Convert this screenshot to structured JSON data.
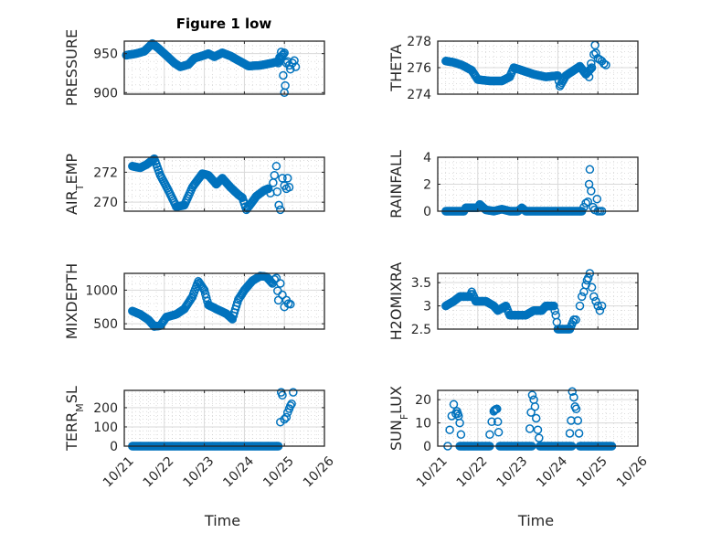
{
  "figure": {
    "title": "Figure 1 low",
    "marker_color": "#0072bd",
    "grid_color": "#d9d9d9",
    "axes_color": "#262626"
  },
  "chart_data": [
    {
      "type": "scatter",
      "id": "pressure",
      "title": "Figure 1 low",
      "ylabel": "PRESSURE",
      "ylabel_sub": null,
      "xlabel": "",
      "ylim": [
        898,
        966
      ],
      "yticks": [
        900,
        950
      ],
      "ytick_labels": [
        "900",
        "950"
      ],
      "xlim": [
        0,
        5
      ],
      "xticks": [
        0,
        1,
        2,
        3,
        4,
        5
      ],
      "xtick_labels": [
        "10/21",
        "10/22",
        "10/23",
        "10/24",
        "10/25",
        "10/26"
      ],
      "show_xtick_labels": false,
      "x_unit": "days since 10/21",
      "grid": true,
      "minor_grid": true,
      "series_keyframes": [
        [
          0.05,
          948
        ],
        [
          0.3,
          950
        ],
        [
          0.5,
          953
        ],
        [
          0.7,
          963
        ],
        [
          0.85,
          957
        ],
        [
          1.0,
          950
        ],
        [
          1.25,
          938
        ],
        [
          1.4,
          933
        ],
        [
          1.6,
          936
        ],
        [
          1.75,
          944
        ],
        [
          2.0,
          948
        ],
        [
          2.1,
          950
        ],
        [
          2.25,
          946
        ],
        [
          2.45,
          951
        ],
        [
          2.65,
          947
        ],
        [
          3.0,
          937
        ],
        [
          3.1,
          934
        ],
        [
          3.4,
          935
        ],
        [
          3.7,
          938
        ],
        [
          3.85,
          940
        ],
        [
          3.95,
          948
        ],
        [
          4.0,
          951
        ]
      ],
      "extra_points": [
        [
          3.85,
          938
        ],
        [
          3.88,
          945
        ],
        [
          3.92,
          952
        ],
        [
          3.97,
          922
        ],
        [
          4.0,
          900
        ],
        [
          4.02,
          909
        ],
        [
          4.05,
          938
        ],
        [
          4.08,
          940
        ],
        [
          4.12,
          935
        ],
        [
          4.15,
          930
        ],
        [
          4.2,
          938
        ],
        [
          4.25,
          941
        ],
        [
          4.28,
          933
        ]
      ]
    },
    {
      "type": "scatter",
      "id": "theta",
      "ylabel": "THETA",
      "ylabel_sub": null,
      "xlabel": "",
      "ylim": [
        274,
        278
      ],
      "yticks": [
        274,
        276,
        278
      ],
      "ytick_labels": [
        "274",
        "276",
        "278"
      ],
      "xlim": [
        0,
        5
      ],
      "xticks": [
        0,
        1,
        2,
        3,
        4,
        5
      ],
      "xtick_labels": [
        "10/21",
        "10/22",
        "10/23",
        "10/24",
        "10/25",
        "10/26"
      ],
      "show_xtick_labels": false,
      "grid": true,
      "minor_grid": true,
      "series_keyframes": [
        [
          0.2,
          276.5
        ],
        [
          0.4,
          276.4
        ],
        [
          0.6,
          276.2
        ],
        [
          0.85,
          275.8
        ],
        [
          1.0,
          275.1
        ],
        [
          1.3,
          275.0
        ],
        [
          1.6,
          275.0
        ],
        [
          1.8,
          275.3
        ],
        [
          1.9,
          276.0
        ],
        [
          2.1,
          275.8
        ],
        [
          2.4,
          275.5
        ],
        [
          2.7,
          275.3
        ],
        [
          3.0,
          275.4
        ],
        [
          3.05,
          274.6
        ],
        [
          3.2,
          275.4
        ],
        [
          3.4,
          275.8
        ],
        [
          3.55,
          276.1
        ],
        [
          3.7,
          275.5
        ],
        [
          3.85,
          276.0
        ]
      ],
      "extra_points": [
        [
          3.78,
          275.3
        ],
        [
          3.83,
          276.3
        ],
        [
          3.9,
          277.0
        ],
        [
          3.93,
          277.7
        ],
        [
          3.95,
          277.1
        ],
        [
          4.0,
          276.7
        ],
        [
          4.05,
          276.6
        ],
        [
          4.1,
          276.5
        ],
        [
          4.15,
          276.3
        ],
        [
          4.2,
          276.2
        ]
      ]
    },
    {
      "type": "scatter",
      "id": "air_temp",
      "ylabel": "AIR",
      "ylabel_sub": "T",
      "ylabel_after": "EMP",
      "xlabel": "",
      "ylim": [
        269.4,
        273.0
      ],
      "yticks": [
        270,
        272
      ],
      "ytick_labels": [
        "270",
        "272"
      ],
      "xlim": [
        0,
        5
      ],
      "xticks": [
        0,
        1,
        2,
        3,
        4,
        5
      ],
      "xtick_labels": [
        "10/21",
        "10/22",
        "10/23",
        "10/24",
        "10/25",
        "10/26"
      ],
      "show_xtick_labels": false,
      "grid": true,
      "minor_grid": true,
      "series_keyframes": [
        [
          0.2,
          272.4
        ],
        [
          0.4,
          272.3
        ],
        [
          0.55,
          272.5
        ],
        [
          0.75,
          272.9
        ],
        [
          0.9,
          271.8
        ],
        [
          1.1,
          270.8
        ],
        [
          1.3,
          269.7
        ],
        [
          1.5,
          269.8
        ],
        [
          1.7,
          271.0
        ],
        [
          1.95,
          271.9
        ],
        [
          2.1,
          271.8
        ],
        [
          2.3,
          271.2
        ],
        [
          2.45,
          271.6
        ],
        [
          2.65,
          271.0
        ],
        [
          2.85,
          270.5
        ],
        [
          2.95,
          270.3
        ],
        [
          3.05,
          269.5
        ],
        [
          3.3,
          270.4
        ],
        [
          3.5,
          270.8
        ],
        [
          3.6,
          270.9
        ]
      ],
      "extra_points": [
        [
          3.65,
          270.6
        ],
        [
          3.72,
          271.3
        ],
        [
          3.75,
          271.8
        ],
        [
          3.8,
          272.4
        ],
        [
          3.82,
          270.7
        ],
        [
          3.86,
          269.8
        ],
        [
          3.9,
          269.5
        ],
        [
          3.95,
          271.6
        ],
        [
          4.0,
          271.1
        ],
        [
          4.05,
          270.9
        ],
        [
          4.08,
          271.6
        ],
        [
          4.12,
          271.0
        ]
      ]
    },
    {
      "type": "scatter",
      "id": "rainfall",
      "ylabel": "RAINFALL",
      "ylabel_sub": null,
      "xlabel": "",
      "ylim": [
        0,
        4
      ],
      "yticks": [
        0,
        2,
        4
      ],
      "ytick_labels": [
        "0",
        "2",
        "4"
      ],
      "xlim": [
        0,
        5
      ],
      "xticks": [
        0,
        1,
        2,
        3,
        4,
        5
      ],
      "xtick_labels": [
        "10/21",
        "10/22",
        "10/23",
        "10/24",
        "10/25",
        "10/26"
      ],
      "show_xtick_labels": false,
      "grid": true,
      "minor_grid": true,
      "series_keyframes": [
        [
          0.2,
          0.0
        ],
        [
          0.65,
          0.0
        ],
        [
          0.7,
          0.25
        ],
        [
          1.0,
          0.25
        ],
        [
          1.05,
          0.5
        ],
        [
          1.2,
          0.1
        ],
        [
          1.4,
          0.0
        ],
        [
          1.6,
          0.15
        ],
        [
          1.8,
          0.0
        ],
        [
          2.0,
          0.0
        ],
        [
          2.1,
          0.25
        ],
        [
          2.2,
          0.0
        ],
        [
          3.6,
          0.0
        ]
      ],
      "extra_points": [
        [
          3.65,
          0.3
        ],
        [
          3.7,
          0.6
        ],
        [
          3.75,
          0.7
        ],
        [
          3.78,
          2.0
        ],
        [
          3.8,
          3.1
        ],
        [
          3.83,
          1.5
        ],
        [
          3.88,
          0.3
        ],
        [
          3.92,
          0.1
        ],
        [
          3.98,
          0.9
        ],
        [
          4.0,
          0.0
        ],
        [
          4.05,
          0.0
        ],
        [
          4.1,
          0.0
        ]
      ]
    },
    {
      "type": "scatter",
      "id": "mixdepth",
      "ylabel": "MIXDEPTH",
      "ylabel_sub": null,
      "xlabel": "",
      "ylim": [
        420,
        1250
      ],
      "yticks": [
        500,
        1000
      ],
      "ytick_labels": [
        "500",
        "1000"
      ],
      "xlim": [
        0,
        5
      ],
      "xticks": [
        0,
        1,
        2,
        3,
        4,
        5
      ],
      "xtick_labels": [
        "10/21",
        "10/22",
        "10/23",
        "10/24",
        "10/25",
        "10/26"
      ],
      "show_xtick_labels": false,
      "grid": true,
      "minor_grid": true,
      "series_keyframes": [
        [
          0.2,
          690
        ],
        [
          0.4,
          640
        ],
        [
          0.6,
          560
        ],
        [
          0.75,
          460
        ],
        [
          0.9,
          470
        ],
        [
          1.05,
          600
        ],
        [
          1.3,
          640
        ],
        [
          1.5,
          720
        ],
        [
          1.7,
          900
        ],
        [
          1.85,
          1130
        ],
        [
          2.0,
          1000
        ],
        [
          2.1,
          780
        ],
        [
          2.3,
          720
        ],
        [
          2.55,
          650
        ],
        [
          2.7,
          570
        ],
        [
          2.85,
          860
        ],
        [
          3.0,
          1000
        ],
        [
          3.2,
          1140
        ],
        [
          3.4,
          1210
        ],
        [
          3.55,
          1200
        ],
        [
          3.7,
          1100
        ]
      ],
      "extra_points": [
        [
          3.75,
          1160
        ],
        [
          3.8,
          1180
        ],
        [
          3.83,
          990
        ],
        [
          3.85,
          850
        ],
        [
          3.9,
          1100
        ],
        [
          3.95,
          930
        ],
        [
          4.0,
          750
        ],
        [
          4.05,
          850
        ],
        [
          4.1,
          800
        ],
        [
          4.15,
          790
        ]
      ]
    },
    {
      "type": "scatter",
      "id": "h2omixra",
      "ylabel": "H2OMIXRA",
      "ylabel_sub": null,
      "xlabel": "",
      "ylim": [
        2.5,
        3.7
      ],
      "yticks": [
        2.5,
        3,
        3.5
      ],
      "ytick_labels": [
        "2.5",
        "3",
        "3.5"
      ],
      "xlim": [
        0,
        5
      ],
      "xticks": [
        0,
        1,
        2,
        3,
        4,
        5
      ],
      "xtick_labels": [
        "10/21",
        "10/22",
        "10/23",
        "10/24",
        "10/25",
        "10/26"
      ],
      "show_xtick_labels": false,
      "grid": true,
      "minor_grid": true,
      "series_keyframes": [
        [
          0.2,
          3.0
        ],
        [
          0.4,
          3.1
        ],
        [
          0.55,
          3.2
        ],
        [
          0.8,
          3.2
        ],
        [
          0.85,
          3.3
        ],
        [
          0.95,
          3.1
        ],
        [
          1.2,
          3.1
        ],
        [
          1.4,
          3.0
        ],
        [
          1.5,
          2.9
        ],
        [
          1.7,
          3.0
        ],
        [
          1.8,
          2.8
        ],
        [
          2.2,
          2.8
        ],
        [
          2.4,
          2.9
        ],
        [
          2.6,
          2.9
        ],
        [
          2.7,
          3.0
        ],
        [
          2.9,
          3.0
        ],
        [
          2.95,
          2.8
        ],
        [
          3.0,
          2.5
        ],
        [
          3.3,
          2.5
        ],
        [
          3.4,
          2.7
        ]
      ],
      "extra_points": [
        [
          3.45,
          2.7
        ],
        [
          3.55,
          3.0
        ],
        [
          3.6,
          3.2
        ],
        [
          3.65,
          3.3
        ],
        [
          3.7,
          3.45
        ],
        [
          3.73,
          3.55
        ],
        [
          3.76,
          3.6
        ],
        [
          3.8,
          3.7
        ],
        [
          3.85,
          3.4
        ],
        [
          3.9,
          3.2
        ],
        [
          3.95,
          3.1
        ],
        [
          4.0,
          3.0
        ],
        [
          4.05,
          2.9
        ],
        [
          4.1,
          3.0
        ]
      ]
    },
    {
      "type": "scatter",
      "id": "terr_msl",
      "ylabel": "TERR",
      "ylabel_sub": "M",
      "ylabel_after": "SL",
      "xlabel": "Time",
      "ylim": [
        0,
        290
      ],
      "yticks": [
        0,
        100,
        200
      ],
      "ytick_labels": [
        "0",
        "100",
        "200"
      ],
      "xlim": [
        0,
        5
      ],
      "xticks": [
        0,
        1,
        2,
        3,
        4,
        5
      ],
      "xtick_labels": [
        "10/21",
        "10/22",
        "10/23",
        "10/24",
        "10/25",
        "10/26"
      ],
      "show_xtick_labels": true,
      "grid": true,
      "minor_grid": true,
      "series_keyframes": [
        [
          0.2,
          0
        ],
        [
          3.85,
          0
        ]
      ],
      "extra_points": [
        [
          3.9,
          125
        ],
        [
          3.92,
          280
        ],
        [
          3.95,
          265
        ],
        [
          4.0,
          140
        ],
        [
          4.05,
          150
        ],
        [
          4.08,
          175
        ],
        [
          4.12,
          195
        ],
        [
          4.15,
          210
        ],
        [
          4.18,
          220
        ],
        [
          4.22,
          280
        ]
      ]
    },
    {
      "type": "scatter",
      "id": "sun_flux",
      "ylabel": "SUN",
      "ylabel_sub": "F",
      "ylabel_after": "LUX",
      "xlabel": "Time",
      "ylim": [
        0,
        24
      ],
      "yticks": [
        0,
        10,
        20
      ],
      "ytick_labels": [
        "0",
        "10",
        "20"
      ],
      "xlim": [
        0,
        5
      ],
      "xticks": [
        0,
        1,
        2,
        3,
        4,
        5
      ],
      "xtick_labels": [
        "10/21",
        "10/22",
        "10/23",
        "10/24",
        "10/25",
        "10/26"
      ],
      "show_xtick_labels": true,
      "grid": true,
      "minor_grid": true,
      "zero_runs": [
        [
          0.55,
          1.3
        ],
        [
          1.55,
          2.35
        ],
        [
          2.55,
          3.35
        ],
        [
          3.55,
          4.35
        ]
      ],
      "extra_points": [
        [
          0.25,
          0
        ],
        [
          0.3,
          7
        ],
        [
          0.35,
          13
        ],
        [
          0.4,
          18
        ],
        [
          0.45,
          14
        ],
        [
          0.48,
          15
        ],
        [
          0.5,
          14
        ],
        [
          0.52,
          13
        ],
        [
          0.55,
          10
        ],
        [
          0.58,
          5
        ],
        [
          1.3,
          5
        ],
        [
          1.35,
          10.5
        ],
        [
          1.4,
          15
        ],
        [
          1.42,
          15.5
        ],
        [
          1.45,
          15.8
        ],
        [
          1.48,
          16
        ],
        [
          1.5,
          10.5
        ],
        [
          1.52,
          6
        ],
        [
          2.3,
          7.5
        ],
        [
          2.33,
          14.5
        ],
        [
          2.36,
          22
        ],
        [
          2.4,
          20
        ],
        [
          2.43,
          17
        ],
        [
          2.46,
          12
        ],
        [
          2.5,
          7
        ],
        [
          2.53,
          3.5
        ],
        [
          3.3,
          5.5
        ],
        [
          3.33,
          11
        ],
        [
          3.36,
          23.5
        ],
        [
          3.4,
          21
        ],
        [
          3.43,
          17
        ],
        [
          3.46,
          16
        ],
        [
          3.5,
          11
        ],
        [
          3.53,
          5.5
        ]
      ]
    }
  ]
}
